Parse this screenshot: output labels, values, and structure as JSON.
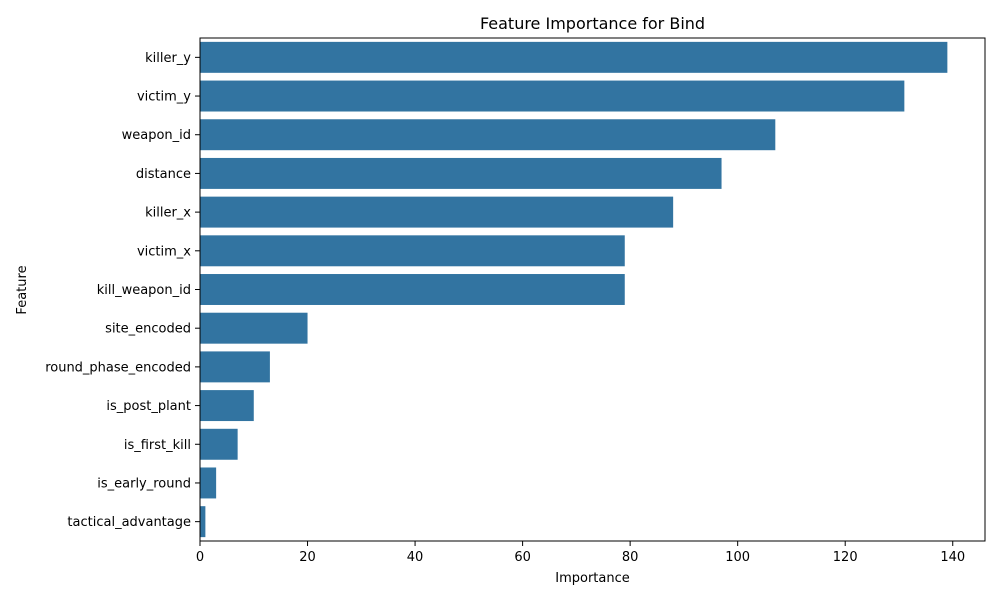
{
  "chart_data": {
    "type": "bar",
    "orientation": "horizontal",
    "title": "Feature Importance for Bind",
    "xlabel": "Importance",
    "ylabel": "Feature",
    "xlim": [
      0,
      146
    ],
    "xticks": [
      0,
      20,
      40,
      60,
      80,
      100,
      120,
      140
    ],
    "categories": [
      "killer_y",
      "victim_y",
      "weapon_id",
      "distance",
      "killer_x",
      "victim_x",
      "kill_weapon_id",
      "site_encoded",
      "round_phase_encoded",
      "is_post_plant",
      "is_first_kill",
      "is_early_round",
      "tactical_advantage"
    ],
    "values": [
      139,
      131,
      107,
      97,
      88,
      79,
      79,
      20,
      13,
      10,
      7,
      3,
      1
    ],
    "bar_color": "#3274a1",
    "grid": false,
    "legend": false
  }
}
